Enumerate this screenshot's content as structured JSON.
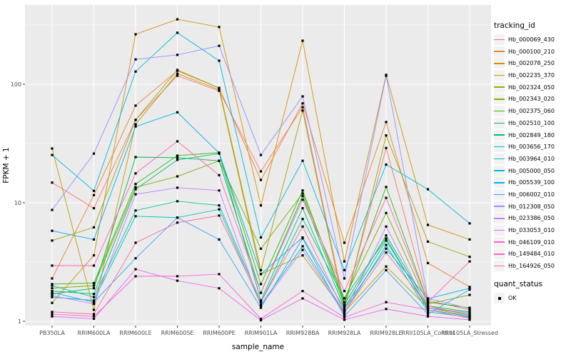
{
  "chart_data": {
    "type": "line",
    "title": "",
    "xlabel": "sample_name",
    "ylabel": "FPKM + 1",
    "yscale": "log10",
    "ylim": [
      0.93,
      460
    ],
    "y_ticks": [
      1,
      10,
      100
    ],
    "y_minor_ticks": [
      3.162,
      31.62,
      316.2
    ],
    "grid": true,
    "legend_position": "right",
    "panel_bg": "#EBEBEB",
    "grid_color": "#FFFFFF",
    "tick_label_color": "#4D4D4D",
    "point_color": "#000000",
    "point_shape": "square",
    "categories": [
      "PB350LA",
      "RRIM600LA",
      "RRIM600LE",
      "RRIM600SE",
      "RRIM600PE",
      "RRIM901LA",
      "RRIM928BA",
      "RRIM928LA",
      "RRIM928LE",
      "RRII105LA_Control",
      "RRII105LA_Stressed"
    ],
    "series": [
      {
        "name": "Hb_000069_430",
        "color": "#F8766D",
        "values": [
          14.8,
          9.0,
          50,
          118,
          88,
          18.4,
          64,
          1.35,
          29,
          1.5,
          1.25
        ]
      },
      {
        "name": "Hb_000100_210",
        "color": "#EA8331",
        "values": [
          2.3,
          11.6,
          66,
          130,
          93,
          15.6,
          69,
          4.6,
          48,
          3.1,
          1.95
        ]
      },
      {
        "name": "Hb_002078_250",
        "color": "#D89000",
        "values": [
          1.43,
          3.6,
          264,
          353,
          304,
          9.5,
          233,
          3.2,
          120,
          6.5,
          4.9
        ]
      },
      {
        "name": "Hb_002235_370",
        "color": "#C09B00",
        "values": [
          28.7,
          1.25,
          46,
          123,
          90,
          2.5,
          3.6,
          1.2,
          2.9,
          1.3,
          1.1
        ]
      },
      {
        "name": "Hb_002324_050",
        "color": "#A3A500",
        "values": [
          4.8,
          6.2,
          50,
          132,
          93,
          2.7,
          60,
          1.25,
          37,
          4.7,
          3.5
        ]
      },
      {
        "name": "Hb_002343_020",
        "color": "#7CAE00",
        "values": [
          1.9,
          2.0,
          13.5,
          16.7,
          22.6,
          4.1,
          12.0,
          1.56,
          8.2,
          1.4,
          1.67
        ]
      },
      {
        "name": "Hb_002375_060",
        "color": "#39B600",
        "values": [
          2.06,
          2.1,
          14.4,
          25.0,
          26.5,
          2.06,
          12.7,
          1.45,
          13.6,
          1.45,
          1.3
        ]
      },
      {
        "name": "Hb_002510_100",
        "color": "#00BB4E",
        "values": [
          1.7,
          1.9,
          24.3,
          24.0,
          22.6,
          1.74,
          11.4,
          1.38,
          5.3,
          1.35,
          1.2
        ]
      },
      {
        "name": "Hb_002849_180",
        "color": "#00BF7D",
        "values": [
          1.8,
          1.7,
          13.0,
          23.0,
          26.0,
          1.5,
          9.0,
          1.3,
          4.8,
          1.3,
          1.15
        ]
      },
      {
        "name": "Hb_003656_170",
        "color": "#00C1A3",
        "values": [
          2.0,
          1.6,
          8.6,
          10.3,
          9.5,
          1.45,
          7.3,
          1.56,
          5.0,
          1.25,
          1.1
        ]
      },
      {
        "name": "Hb_003964_010",
        "color": "#00BFC4",
        "values": [
          1.6,
          1.5,
          7.7,
          7.5,
          8.8,
          1.38,
          4.3,
          1.18,
          4.4,
          1.2,
          1.08
        ]
      },
      {
        "name": "Hb_005000_050",
        "color": "#00BAE0",
        "values": [
          25.3,
          12.6,
          128,
          272,
          158,
          5.1,
          22.6,
          2.7,
          21,
          13.0,
          6.7
        ]
      },
      {
        "name": "Hb_005539_100",
        "color": "#00B0F6",
        "values": [
          5.8,
          4.9,
          44,
          58,
          26.3,
          2.5,
          5.1,
          1.27,
          4.1,
          1.55,
          1.9
        ]
      },
      {
        "name": "Hb_006002_010",
        "color": "#35A2FF",
        "values": [
          1.75,
          1.45,
          3.4,
          7.5,
          4.9,
          1.3,
          5.0,
          1.1,
          2.7,
          1.15,
          1.85
        ]
      },
      {
        "name": "Hb_012308_050",
        "color": "#9590FF",
        "values": [
          8.7,
          26,
          162,
          177,
          211,
          25.3,
          79,
          2.3,
          118,
          1.56,
          1.28
        ]
      },
      {
        "name": "Hb_023386_050",
        "color": "#C77CFF",
        "values": [
          1.65,
          1.4,
          11.8,
          13.4,
          12.7,
          1.35,
          4.0,
          1.15,
          6.3,
          1.3,
          1.18
        ]
      },
      {
        "name": "Hb_033053_010",
        "color": "#E76BF3",
        "values": [
          1.1,
          1.05,
          2.75,
          2.2,
          1.9,
          1.02,
          1.56,
          1.03,
          1.27,
          1.1,
          1.03
        ]
      },
      {
        "name": "Hb_046109_010",
        "color": "#FA62DB",
        "values": [
          1.15,
          1.1,
          2.4,
          2.4,
          2.5,
          1.05,
          1.8,
          1.08,
          1.45,
          1.25,
          1.06
        ]
      },
      {
        "name": "Hb_149484_010",
        "color": "#FF62BC",
        "values": [
          2.95,
          2.95,
          17.7,
          33,
          17.1,
          1.74,
          10.6,
          1.8,
          11.0,
          1.45,
          3.2
        ]
      },
      {
        "name": "Hb_164926_050",
        "color": "#FF6A98",
        "values": [
          1.2,
          1.15,
          4.6,
          6.8,
          7.8,
          1.45,
          6.3,
          1.2,
          3.8,
          1.35,
          1.12
        ]
      }
    ]
  },
  "legend": {
    "tracking_title": "tracking_id",
    "quant_title": "quant_status",
    "quant_items": [
      {
        "label": "OK",
        "marker": "black-square"
      }
    ]
  }
}
